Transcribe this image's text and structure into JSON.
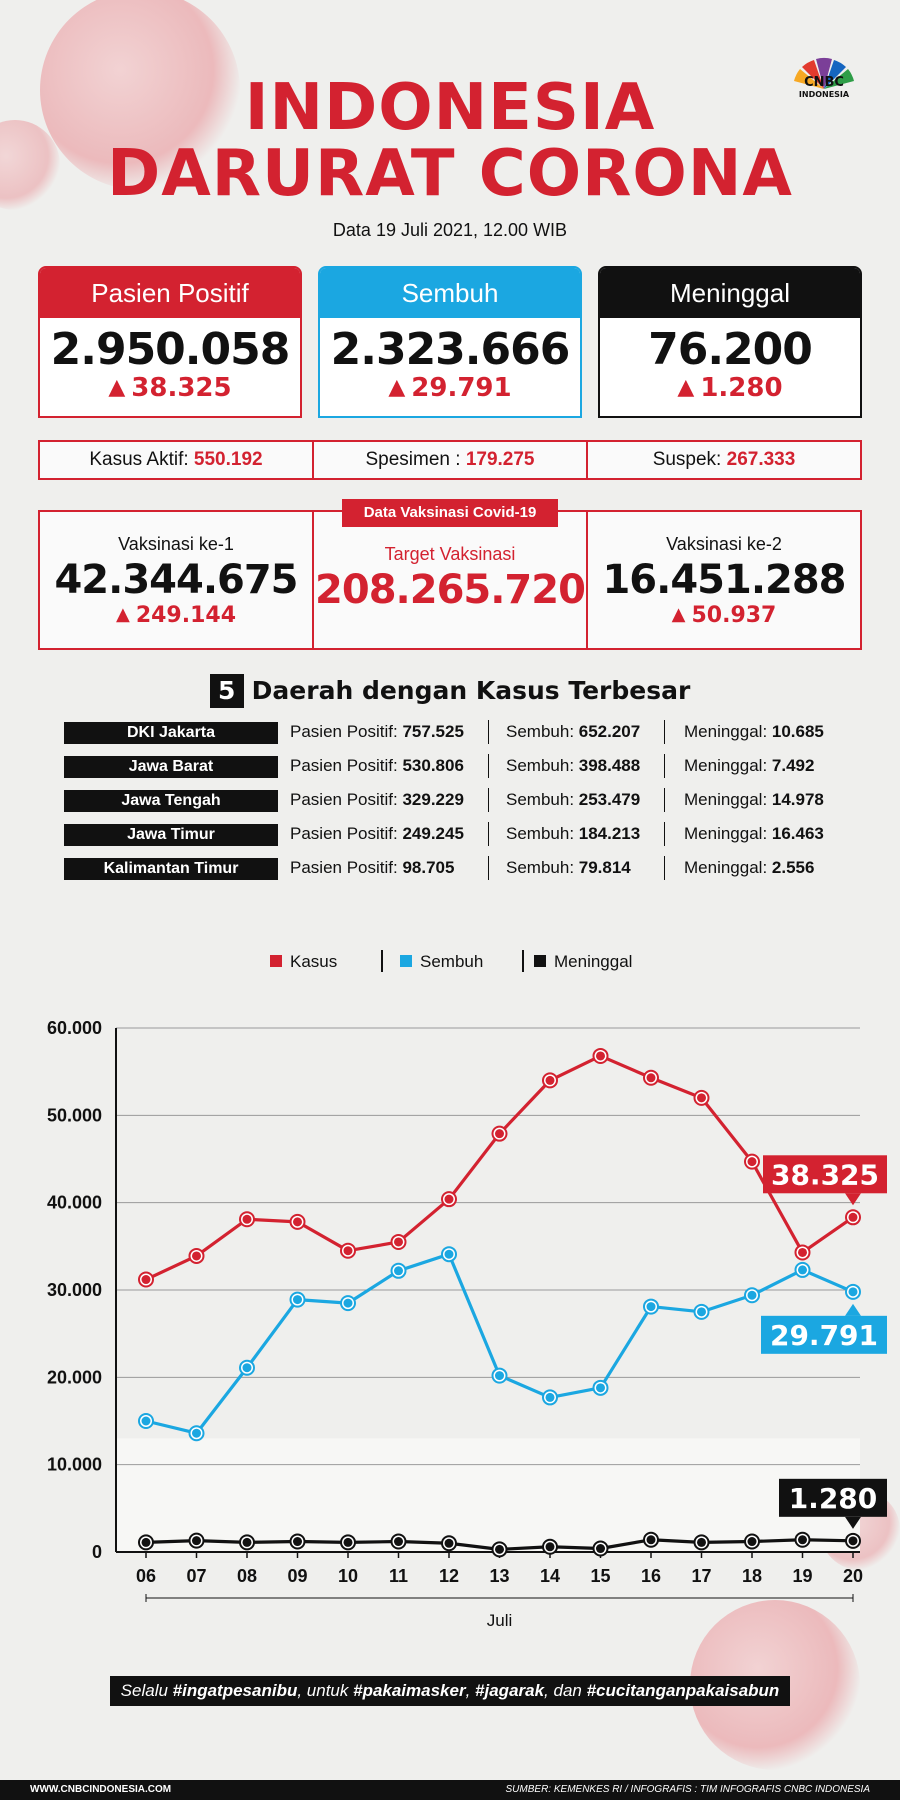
{
  "header": {
    "title_line1": "INDONESIA",
    "title_line2": "DARURAT CORONA",
    "subtitle": "Data 19 Juli 2021, 12.00 WIB",
    "logo_text": "CNBC",
    "logo_sub": "INDONESIA"
  },
  "cards": [
    {
      "label": "Pasien Positif",
      "value": "2.950.058",
      "delta": "38.325",
      "color": "#d32230"
    },
    {
      "label": "Sembuh",
      "value": "2.323.666",
      "delta": "29.791",
      "color": "#1ba7e1"
    },
    {
      "label": "Meninggal",
      "value": "76.200",
      "delta": "1.280",
      "color": "#111111"
    }
  ],
  "info": [
    {
      "label": "Kasus Aktif: ",
      "value": "550.192"
    },
    {
      "label": "Spesimen : ",
      "value": "179.275"
    },
    {
      "label": "Suspek: ",
      "value": "267.333"
    }
  ],
  "vaccination": {
    "tag": "Data Vaksinasi Covid-19",
    "dose1_label": "Vaksinasi ke-1",
    "dose1_value": "42.344.675",
    "dose1_delta": "249.144",
    "target_label": "Target Vaksinasi",
    "target_value": "208.265.720",
    "dose2_label": "Vaksinasi ke-2",
    "dose2_value": "16.451.288",
    "dose2_delta": "50.937"
  },
  "regions": {
    "number": "5",
    "title": "Daerah dengan Kasus Terbesar",
    "pos_label": "Pasien Positif: ",
    "rec_label": "Sembuh: ",
    "death_label": "Meninggal: ",
    "rows": [
      {
        "name": "DKI Jakarta",
        "positif": "757.525",
        "sembuh": "652.207",
        "meninggal": "10.685"
      },
      {
        "name": "Jawa Barat",
        "positif": "530.806",
        "sembuh": "398.488",
        "meninggal": "7.492"
      },
      {
        "name": "Jawa Tengah",
        "positif": "329.229",
        "sembuh": "253.479",
        "meninggal": "14.978"
      },
      {
        "name": "Jawa Timur",
        "positif": "249.245",
        "sembuh": "184.213",
        "meninggal": "16.463"
      },
      {
        "name": "Kalimantan Timur",
        "positif": "98.705",
        "sembuh": "79.814",
        "meninggal": "2.556"
      }
    ]
  },
  "chart_data": {
    "type": "line",
    "x": [
      "06",
      "07",
      "08",
      "09",
      "10",
      "11",
      "12",
      "13",
      "14",
      "15",
      "16",
      "17",
      "18",
      "19",
      "20"
    ],
    "xlabel": "Juli",
    "ylim": [
      0,
      60000
    ],
    "yticks": [
      0,
      10000,
      20000,
      30000,
      40000,
      50000,
      60000
    ],
    "ytick_labels": [
      "0",
      "10.000",
      "20.000",
      "30.000",
      "40.000",
      "50.000",
      "60.000"
    ],
    "grid": true,
    "legend_position": "top",
    "series": [
      {
        "name": "Kasus",
        "color": "#d32230",
        "values": [
          31200,
          33900,
          38100,
          37800,
          34500,
          35500,
          40400,
          47900,
          54000,
          56800,
          54300,
          52000,
          44700,
          34300,
          38325
        ],
        "callout": "38.325"
      },
      {
        "name": "Sembuh",
        "color": "#1ba7e1",
        "values": [
          15000,
          13600,
          21100,
          28900,
          28500,
          32200,
          34100,
          20200,
          17700,
          18800,
          28100,
          27500,
          29400,
          32300,
          29791
        ],
        "callout": "29.791"
      },
      {
        "name": "Meninggal",
        "color": "#111111",
        "values": [
          1100,
          1300,
          1100,
          1200,
          1100,
          1200,
          1000,
          300,
          600,
          400,
          1400,
          1100,
          1200,
          1400,
          1280
        ],
        "callout": "1.280"
      }
    ]
  },
  "footer": {
    "slogan_parts": [
      "Selalu ",
      "#ingatpesanibu",
      ", untuk ",
      "#pakaimasker",
      ", ",
      "#jagarak",
      ", dan ",
      "#cucitanganpakaisabun"
    ],
    "website": "WWW.CNBCINDONESIA.COM",
    "source": "SUMBER: KEMENKES RI / INFOGRAFIS : TIM INFOGRAFIS CNBC INDONESIA"
  }
}
